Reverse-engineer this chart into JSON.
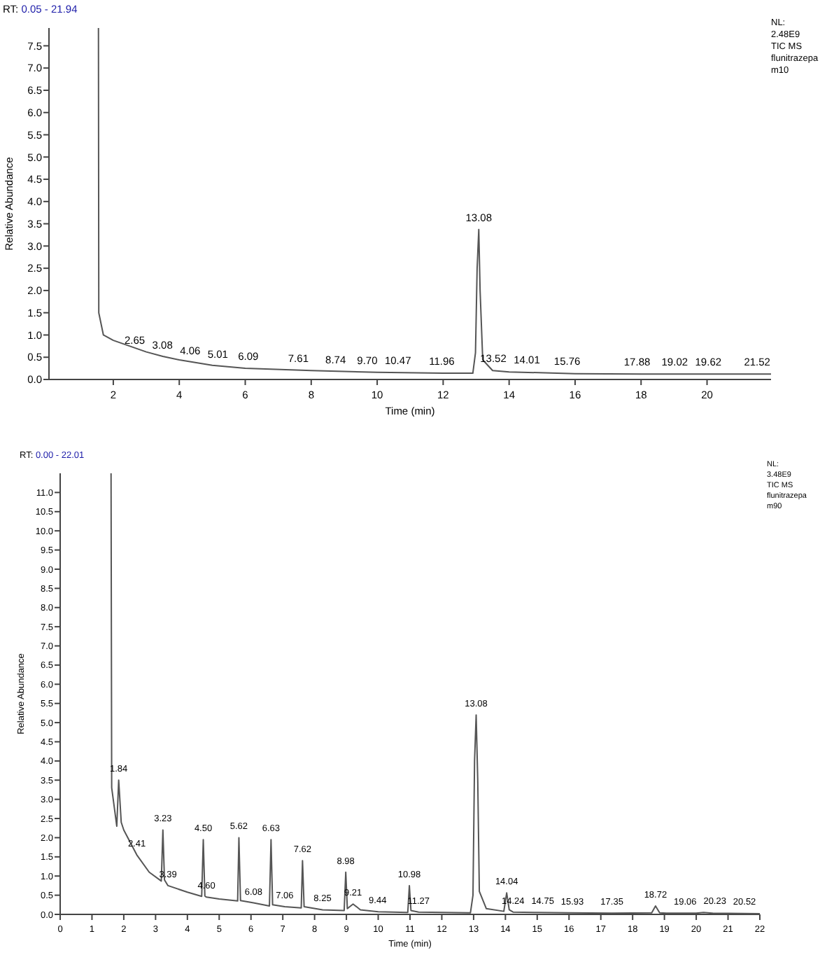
{
  "chart_data": [
    {
      "type": "line",
      "title": "RT: 0.05 - 21.94",
      "xlabel": "Time (min)",
      "ylabel": "Relative Abundance",
      "xlim": [
        0.05,
        21.94
      ],
      "ylim": [
        0,
        7.9
      ],
      "xticks": [
        2,
        4,
        6,
        8,
        10,
        12,
        14,
        16,
        18,
        20
      ],
      "yticks": [
        {
          "value": 0,
          "label": "0.0"
        },
        0.5,
        {
          "value": 1,
          "label": "1.0"
        },
        1.5,
        {
          "value": 2,
          "label": "2.0"
        },
        2.5,
        {
          "value": 3,
          "label": "3.0"
        },
        3.5,
        {
          "value": 4,
          "label": "4.0"
        },
        4.5,
        {
          "value": 5,
          "label": "5.0"
        },
        5.5,
        {
          "value": 6,
          "label": "6.0"
        },
        6.5,
        {
          "value": 7,
          "label": "7.0"
        },
        7.5
      ],
      "series": [
        {
          "color": "#555555",
          "x": [
            1.55,
            1.56,
            1.7,
            2.0,
            3.0,
            3.5,
            4.0,
            5.0,
            6.0,
            8.0,
            10.0,
            12.0,
            12.9,
            12.98,
            13.03,
            13.08,
            13.12,
            13.2,
            13.5,
            14.0,
            16.0,
            18.0,
            21.94
          ],
          "values": [
            7.9,
            1.5,
            1.0,
            0.88,
            0.62,
            0.52,
            0.44,
            0.32,
            0.25,
            0.2,
            0.16,
            0.14,
            0.14,
            0.6,
            2.5,
            3.37,
            2.0,
            0.44,
            0.2,
            0.17,
            0.13,
            0.12,
            0.12
          ]
        }
      ],
      "annotations": [
        "NL:",
        "2.48E9",
        "TIC  MS",
        "flunitrazepa",
        "m10",
        {
          "text": "2.65",
          "x": 2.65,
          "y": 0.62
        },
        {
          "text": "3.08",
          "x": 3.08,
          "y": 0.5
        },
        {
          "text": "4.06",
          "x": 4.06,
          "y": 0.38
        },
        {
          "text": "5.01",
          "x": 5.01,
          "y": 0.3
        },
        {
          "text": "6.09",
          "x": 6.09,
          "y": 0.25
        },
        {
          "text": "7.61",
          "x": 7.61,
          "y": 0.2
        },
        {
          "text": "8.74",
          "x": 8.74,
          "y": 0.18
        },
        {
          "text": "9.70",
          "x": 9.7,
          "y": 0.16
        },
        {
          "text": "10.47",
          "x": 10.47,
          "y": 0.16
        },
        {
          "text": "11.96",
          "x": 11.96,
          "y": 0.14
        },
        {
          "text": "13.08",
          "x": 13.08,
          "y": 3.37
        },
        {
          "text": "13.52",
          "x": 13.52,
          "y": 0.2
        },
        {
          "text": "14.01",
          "x": 14.01,
          "y": 0.17
        },
        {
          "text": "15.76",
          "x": 15.76,
          "y": 0.14
        },
        {
          "text": "17.88",
          "x": 17.88,
          "y": 0.12
        },
        {
          "text": "19.02",
          "x": 19.02,
          "y": 0.12
        },
        {
          "text": "19.62",
          "x": 19.62,
          "y": 0.12
        },
        {
          "text": "21.52",
          "x": 21.52,
          "y": 0.12
        }
      ]
    },
    {
      "type": "line",
      "title": "RT: 0.00 - 22.01",
      "xlabel": "Time (min)",
      "ylabel": "Relative Abundance",
      "xlim": [
        0,
        22
      ],
      "ylim": [
        0,
        11.5
      ],
      "xticks": [
        0,
        1,
        2,
        3,
        4,
        5,
        6,
        7,
        8,
        9,
        10,
        11,
        12,
        13,
        14,
        15,
        16,
        17,
        18,
        19,
        20,
        21,
        22
      ],
      "yticks": [
        {
          "value": 0,
          "label": "0.0"
        },
        0.5,
        {
          "value": 1,
          "label": "1.0"
        },
        1.5,
        {
          "value": 2,
          "label": "2.0"
        },
        2.5,
        {
          "value": 3,
          "label": "3.0"
        },
        3.5,
        {
          "value": 4,
          "label": "4.0"
        },
        4.5,
        {
          "value": 5,
          "label": "5.0"
        },
        5.5,
        {
          "value": 6,
          "label": "6.0"
        },
        6.5,
        {
          "value": 7,
          "label": "7.0"
        },
        7.5,
        {
          "value": 8,
          "label": "8.0"
        },
        8.5,
        {
          "value": 9,
          "label": "9.0"
        },
        9.5,
        {
          "value": 10,
          "label": "10.0"
        },
        10.5,
        {
          "value": 11,
          "label": "11.0"
        }
      ],
      "series": [
        {
          "color": "#555555",
          "x": [
            1.6,
            1.62,
            1.78,
            1.84,
            1.92,
            2.0,
            2.41,
            2.8,
            3.18,
            3.23,
            3.28,
            3.39,
            4.0,
            4.45,
            4.5,
            4.55,
            4.6,
            5.0,
            5.58,
            5.62,
            5.67,
            6.08,
            6.58,
            6.63,
            6.68,
            7.06,
            7.58,
            7.62,
            7.67,
            8.25,
            8.93,
            8.98,
            9.03,
            9.21,
            9.44,
            10.0,
            10.93,
            10.98,
            11.03,
            11.27,
            12.9,
            12.98,
            13.03,
            13.08,
            13.13,
            13.18,
            13.4,
            13.95,
            14.04,
            14.12,
            14.24,
            15.0,
            16.0,
            17.35,
            18.6,
            18.72,
            18.85,
            19.06,
            20.0,
            20.23,
            20.52,
            22.0
          ],
          "values": [
            11.5,
            3.3,
            2.3,
            3.5,
            2.4,
            2.2,
            1.55,
            1.1,
            0.87,
            2.2,
            0.9,
            0.75,
            0.58,
            0.47,
            1.95,
            0.48,
            0.45,
            0.4,
            0.35,
            2.0,
            0.36,
            0.3,
            0.22,
            1.95,
            0.25,
            0.2,
            0.17,
            1.4,
            0.2,
            0.12,
            0.1,
            1.1,
            0.15,
            0.27,
            0.12,
            0.07,
            0.05,
            0.75,
            0.1,
            0.06,
            0.04,
            0.5,
            4.0,
            5.2,
            3.5,
            0.6,
            0.15,
            0.08,
            0.56,
            0.12,
            0.06,
            0.05,
            0.04,
            0.03,
            0.04,
            0.22,
            0.04,
            0.03,
            0.03,
            0.05,
            0.03,
            0.02
          ]
        }
      ],
      "annotations": [
        "NL:",
        "3.48E9",
        "TIC  MS",
        "flunitrazepa",
        "m90",
        {
          "text": "1.84",
          "x": 1.84,
          "y": 3.5
        },
        {
          "text": "2.41",
          "x": 2.41,
          "y": 1.55
        },
        {
          "text": "3.23",
          "x": 3.23,
          "y": 2.2
        },
        {
          "text": "3.39",
          "x": 3.39,
          "y": 0.75
        },
        {
          "text": "4.50",
          "x": 4.5,
          "y": 1.95
        },
        {
          "text": "4.60",
          "x": 4.6,
          "y": 0.45
        },
        {
          "text": "5.62",
          "x": 5.62,
          "y": 2.0
        },
        {
          "text": "6.08",
          "x": 6.08,
          "y": 0.3
        },
        {
          "text": "6.63",
          "x": 6.63,
          "y": 1.95
        },
        {
          "text": "7.06",
          "x": 7.06,
          "y": 0.2
        },
        {
          "text": "7.62",
          "x": 7.62,
          "y": 1.4
        },
        {
          "text": "8.25",
          "x": 8.25,
          "y": 0.12
        },
        {
          "text": "8.98",
          "x": 8.98,
          "y": 1.1
        },
        {
          "text": "9.21",
          "x": 9.21,
          "y": 0.27
        },
        {
          "text": "9.44",
          "x": 9.44,
          "y": 0.08
        },
        {
          "text": "10.98",
          "x": 10.98,
          "y": 0.75
        },
        {
          "text": "11.27",
          "x": 11.27,
          "y": 0.06
        },
        {
          "text": "13.08",
          "x": 13.08,
          "y": 5.2
        },
        {
          "text": "14.04",
          "x": 14.04,
          "y": 0.56
        },
        {
          "text": "14.24",
          "x": 14.24,
          "y": 0.06
        },
        {
          "text": "14.75",
          "x": 14.75,
          "y": 0.05
        },
        {
          "text": "15.93",
          "x": 15.93,
          "y": 0.04
        },
        {
          "text": "17.35",
          "x": 17.35,
          "y": 0.03
        },
        {
          "text": "18.72",
          "x": 18.72,
          "y": 0.22
        },
        {
          "text": "19.06",
          "x": 19.06,
          "y": 0.03
        },
        {
          "text": "20.23",
          "x": 20.23,
          "y": 0.05
        },
        {
          "text": "20.52",
          "x": 20.52,
          "y": 0.03
        }
      ]
    }
  ]
}
